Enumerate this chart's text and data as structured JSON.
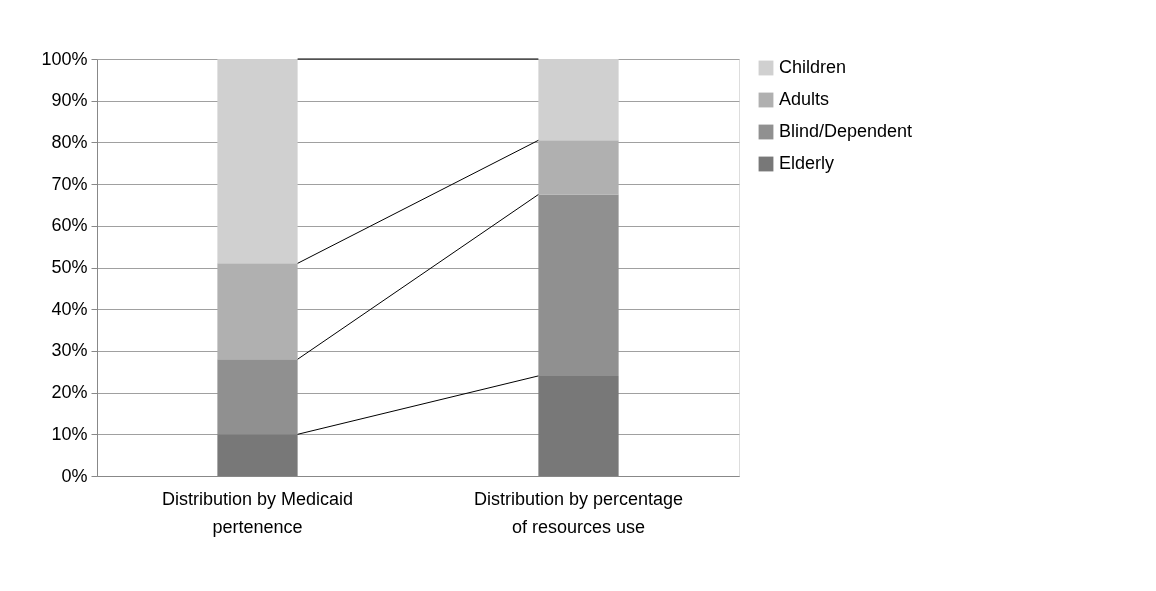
{
  "chart_data": {
    "type": "bar",
    "stacked": true,
    "categories": [
      "Distribution by Medicaid pertenence",
      "Distribution by percentage of resources use"
    ],
    "series": [
      {
        "name": "Elderly",
        "color": "#787878",
        "values": [
          10,
          24
        ]
      },
      {
        "name": "Blind/Dependent",
        "color": "#909090",
        "values": [
          18,
          43.5
        ]
      },
      {
        "name": "Adults",
        "color": "#b0b0b0",
        "values": [
          23,
          13
        ]
      },
      {
        "name": "Children",
        "color": "#d0d0d0",
        "values": [
          49,
          19.5
        ]
      }
    ],
    "ylim": [
      0,
      100
    ],
    "yticks": [
      {
        "value": 0,
        "label": "0%"
      },
      {
        "value": 10,
        "label": "10%"
      },
      {
        "value": 20,
        "label": "20%"
      },
      {
        "value": 30,
        "label": "30%"
      },
      {
        "value": 40,
        "label": "40%"
      },
      {
        "value": 50,
        "label": "50%"
      },
      {
        "value": 60,
        "label": "60%"
      },
      {
        "value": 70,
        "label": "70%"
      },
      {
        "value": 80,
        "label": "80%"
      },
      {
        "value": 90,
        "label": "90%"
      },
      {
        "value": 100,
        "label": "100%"
      }
    ],
    "grid": "y",
    "legend": "right"
  }
}
